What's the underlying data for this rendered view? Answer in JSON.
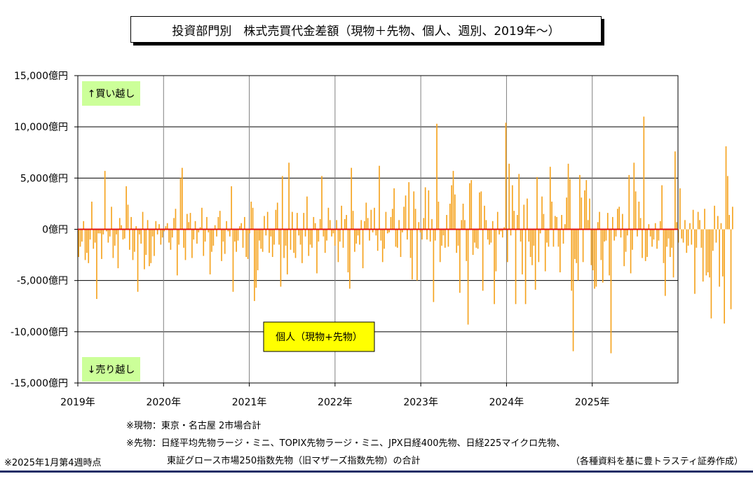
{
  "title": "投資部門別　株式売買代金差額（現物＋先物、個人、週別、2019年～）",
  "chart_data": {
    "type": "bar",
    "ylim": [
      -15000,
      15000
    ],
    "y_ticks": [
      {
        "value": 15000,
        "label": "15,000億円"
      },
      {
        "value": 10000,
        "label": "10,000億円"
      },
      {
        "value": 5000,
        "label": "5,000億円"
      },
      {
        "value": 0,
        "label": "0億円"
      },
      {
        "value": -5000,
        "label": "-5,000億円"
      },
      {
        "value": -10000,
        "label": "-10,000億円"
      },
      {
        "value": -15000,
        "label": "-15,000億円"
      }
    ],
    "x_ticks": [
      "2019年",
      "2020年",
      "2021年",
      "2022年",
      "2023年",
      "2024年",
      "2025年"
    ],
    "x_range_years": [
      2019,
      2026
    ],
    "grid": true,
    "series": [
      {
        "name": "個人（現物+先物）",
        "color": "#f5a21c",
        "x_start": "2019年1月第1週",
        "values": [
          -2700,
          -1700,
          -1200,
          800,
          -3000,
          -2300,
          -3300,
          -1000,
          2700,
          -1900,
          -1300,
          -6800,
          -400,
          -400,
          -2900,
          -500,
          5700,
          -200,
          -1300,
          -700,
          2200,
          -2800,
          -1600,
          -500,
          -3800,
          1100,
          400,
          -1000,
          -900,
          4200,
          2400,
          -2000,
          1200,
          -3000,
          -2200,
          300,
          -6100,
          -500,
          -1400,
          1700,
          -3900,
          -2500,
          900,
          -3600,
          -3300,
          -700,
          -2600,
          800,
          -500,
          500,
          -1500,
          -800,
          -200,
          300,
          600,
          -1300,
          -2000,
          -800,
          1100,
          2000,
          -4500,
          -1500,
          5000,
          6000,
          -1800,
          -3000,
          1500,
          700,
          1600,
          -2800,
          -1000,
          800,
          -1400,
          -300,
          200,
          2100,
          -2600,
          -1200,
          1200,
          -300,
          -4400,
          -2200,
          -1600,
          400,
          -700,
          1200,
          1800,
          -3100,
          -1200,
          -2400,
          800,
          -200,
          -700,
          4200,
          -6100,
          -1200,
          -2200,
          -1100,
          300,
          600,
          -1800,
          1200,
          -2700,
          -2900,
          -400,
          2700,
          2100,
          -7000,
          -5700,
          -4000,
          -1100,
          -1900,
          -2200,
          1300,
          -600,
          1700,
          -2300,
          -700,
          -2700,
          -1500,
          1900,
          2600,
          -1500,
          -5600,
          5200,
          -2800,
          -1600,
          -4400,
          6500,
          -2000,
          1700,
          -2300,
          -2800,
          1600,
          -600,
          -1500,
          -3300,
          1600,
          -700,
          3200,
          -2600,
          -1500,
          -1800,
          1200,
          600,
          -4300,
          -1200,
          1000,
          5200,
          -700,
          -2300,
          -1100,
          2100,
          900,
          -700,
          -400,
          -1600,
          900,
          -3200,
          -1200,
          2300,
          -1800,
          1000,
          1400,
          -4200,
          -5800,
          6000,
          1800,
          -2200,
          -1400,
          -600,
          -1500,
          900,
          -3800,
          800,
          2600,
          1100,
          -1100,
          1900,
          -300,
          2100,
          -600,
          -2100,
          6200,
          -1100,
          -3200,
          -1900,
          1700,
          -400,
          -300,
          1200,
          2000,
          4000,
          -1700,
          -1800,
          900,
          -2700,
          -300,
          2200,
          3300,
          -1000,
          4600,
          -2800,
          -4900,
          3700,
          2000,
          -5000,
          700,
          -300,
          -1000,
          1100,
          4100,
          -1000,
          3800,
          -1200,
          1000,
          -7100,
          -1100,
          10300,
          2700,
          -3200,
          -1600,
          -600,
          -1800,
          1400,
          -1700,
          2500,
          4300,
          5700,
          3400,
          -2300,
          -1600,
          -6200,
          900,
          2500,
          900,
          -3100,
          -9300,
          4500,
          4800,
          -2500,
          -1300,
          -1800,
          -1900,
          3600,
          3700,
          -6000,
          2300,
          900,
          -1000,
          -1500,
          -1300,
          800,
          -7300,
          -4100,
          1700,
          -500,
          -200,
          -800,
          200,
          10400,
          -3200,
          6400,
          -600,
          4300,
          1800,
          -7300,
          1400,
          5400,
          -1200,
          -4400,
          2400,
          -7300,
          3000,
          -1200,
          -2700,
          -3500,
          -1600,
          -5900,
          5100,
          -3200,
          -400,
          3200,
          1500,
          -4100,
          -1300,
          -1700,
          6100,
          2700,
          -1700,
          1300,
          1200,
          -1700,
          -4200,
          1400,
          -1400,
          500,
          3100,
          6400,
          4900,
          -6000,
          -11900,
          -2900,
          -3300,
          -5000,
          5300,
          3100,
          -3200,
          3800,
          4800,
          900,
          3000,
          -3500,
          -4000,
          -5800,
          -5600,
          700,
          1700,
          -3000,
          -5200,
          -1200,
          -1100,
          1600,
          -4500,
          -12100,
          1200,
          -1100,
          -700,
          2000,
          2200,
          -800,
          1500,
          -3600,
          -2200,
          -600,
          5300,
          -4300,
          -2000,
          6500,
          3700,
          -700,
          2700,
          1100,
          -2800,
          11000,
          -3100,
          -2700,
          500,
          -700,
          -1700,
          -1000,
          600,
          -1900,
          -1100,
          800,
          4300,
          -3300,
          -6500,
          -1700,
          -900,
          -2700,
          -1800,
          -4700,
          7600,
          700,
          -1300,
          4000,
          -900,
          -1300,
          900,
          -2300,
          -1600,
          600,
          -1500,
          1900,
          -6300,
          -1800,
          1700,
          900,
          -1800,
          -5100,
          2000,
          -4500,
          -4200,
          -4700,
          -8700,
          -2100,
          2300,
          -1300,
          1300,
          -5600,
          600,
          -4600,
          -9200,
          8100,
          5200,
          1400,
          -7800,
          2200
        ]
      }
    ],
    "annotations": {
      "buy": "↑買い越し",
      "sell": "↓売り越し",
      "legend": "個人（現物+先物）"
    },
    "zero_line_color": "#e01010"
  },
  "notes": {
    "genbutsu": "※現物：東京・名古屋 2市場合計",
    "sakimono_1": "※先物：日経平均先物ラージ・ミニ、TOPIX先物ラージ・ミニ、JPX日経400先物、日経225マイクロ先物、",
    "sakimono_2": "東証グロース市場250指数先物（旧マザーズ指数先物）の合計",
    "timestamp": "※2025年1月第4週時点",
    "source": "（各種資料を基に豊トラスティ証券作成）"
  }
}
